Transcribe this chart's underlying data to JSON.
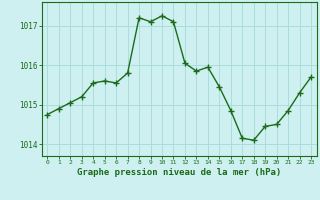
{
  "x": [
    0,
    1,
    2,
    3,
    4,
    5,
    6,
    7,
    8,
    9,
    10,
    11,
    12,
    13,
    14,
    15,
    16,
    17,
    18,
    19,
    20,
    21,
    22,
    23
  ],
  "y": [
    1014.75,
    1014.9,
    1015.05,
    1015.2,
    1015.55,
    1015.6,
    1015.55,
    1015.8,
    1017.2,
    1017.1,
    1017.25,
    1017.1,
    1016.05,
    1015.85,
    1015.95,
    1015.45,
    1014.85,
    1014.15,
    1014.1,
    1014.45,
    1014.5,
    1014.85,
    1015.3,
    1015.7
  ],
  "line_color": "#1a6b1a",
  "marker": "+",
  "bg_color": "#cff0f0",
  "grid_color": "#aadddd",
  "xlabel": "Graphe pression niveau de la mer (hPa)",
  "xlabel_color": "#1a6b1a",
  "tick_color": "#1a6b1a",
  "yticks": [
    1014,
    1015,
    1016,
    1017
  ],
  "ylim": [
    1013.7,
    1017.6
  ],
  "xlim": [
    -0.5,
    23.5
  ],
  "xticks": [
    0,
    1,
    2,
    3,
    4,
    5,
    6,
    7,
    8,
    9,
    10,
    11,
    12,
    13,
    14,
    15,
    16,
    17,
    18,
    19,
    20,
    21,
    22,
    23
  ]
}
